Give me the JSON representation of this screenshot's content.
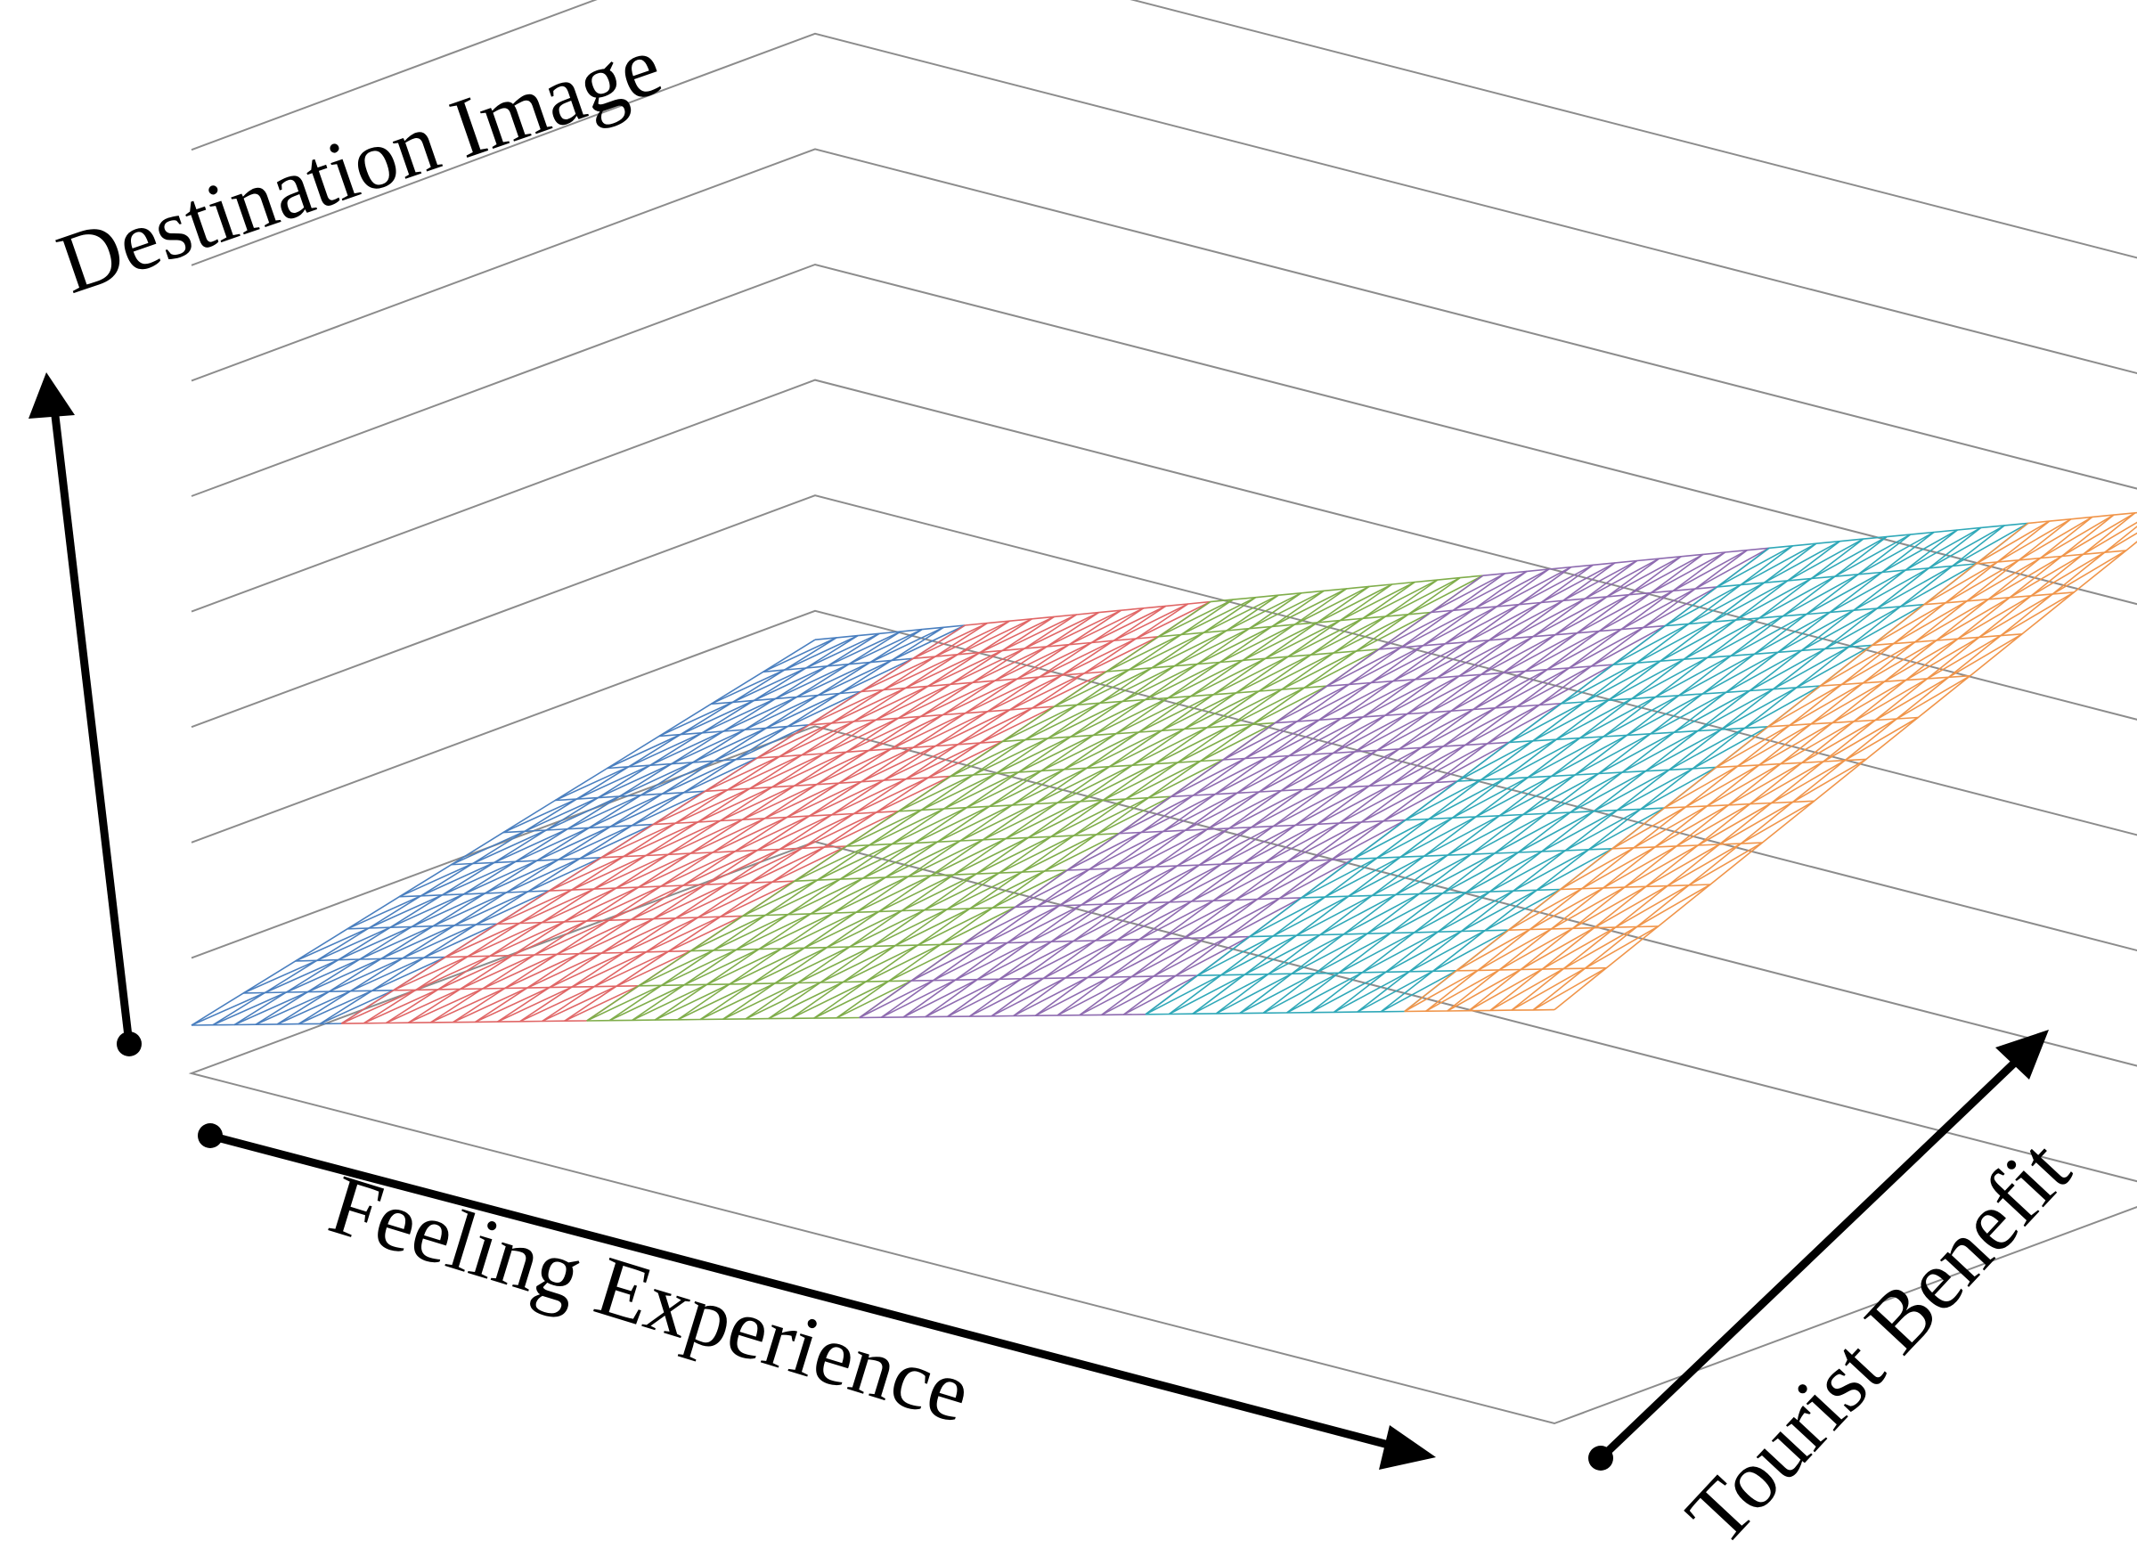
{
  "chart_data": {
    "type": "surface",
    "axes": {
      "x": {
        "label": "Feeling Experience",
        "range": [
          0,
          1
        ]
      },
      "y": {
        "label": "Tourist Benefit",
        "range": [
          0,
          1
        ]
      },
      "z": {
        "label": "Destination Image",
        "range": [
          0,
          1
        ]
      }
    },
    "grid": true,
    "series": [
      {
        "color": "#4a7fbf",
        "x_range": [
          0.0,
          0.11
        ]
      },
      {
        "color": "#e06666",
        "x_range": [
          0.11,
          0.29
        ]
      },
      {
        "color": "#7fad4a",
        "x_range": [
          0.29,
          0.49
        ]
      },
      {
        "color": "#8e6bb0",
        "x_range": [
          0.49,
          0.7
        ]
      },
      {
        "color": "#2fa8b8",
        "x_range": [
          0.7,
          0.89
        ]
      },
      {
        "color": "#f0954a",
        "x_range": [
          0.89,
          1.0
        ]
      }
    ]
  },
  "labels": {
    "z_axis": "Destination Image",
    "x_axis": "Feeling Experience",
    "y_axis": "Tourist Benefit"
  }
}
